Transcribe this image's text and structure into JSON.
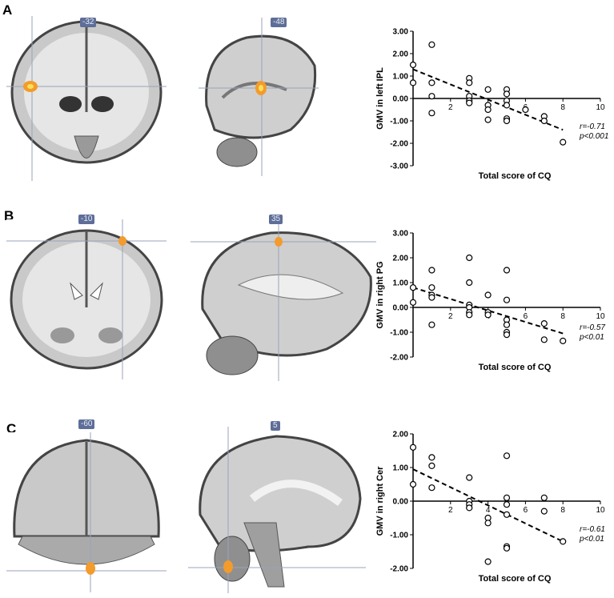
{
  "panels": [
    {
      "letter": "A",
      "coronal_coord": "-32",
      "sagittal_coord": "-48",
      "chart_data": {
        "type": "scatter",
        "ylabel": "GMV in  left IPL",
        "xlabel": "Total score of CQ",
        "xlim": [
          0,
          10
        ],
        "ylim": [
          -3,
          3
        ],
        "xticks": [
          "2",
          "4",
          "6",
          "8",
          "10"
        ],
        "yticks": [
          "3.00",
          "2.00",
          "1.00",
          "0.00",
          "-1.00",
          "-2.00",
          "-3.00"
        ],
        "points": [
          [
            0,
            1.5
          ],
          [
            0,
            0.7
          ],
          [
            1,
            2.4
          ],
          [
            1,
            0.7
          ],
          [
            1,
            0.1
          ],
          [
            1,
            -0.65
          ],
          [
            3,
            0.9
          ],
          [
            3,
            0.7
          ],
          [
            3,
            0.1
          ],
          [
            3,
            -0.1
          ],
          [
            3,
            -0.2
          ],
          [
            4,
            0.4
          ],
          [
            4,
            -0.3
          ],
          [
            4,
            -0.5
          ],
          [
            4,
            -0.95
          ],
          [
            5,
            0.4
          ],
          [
            5,
            0.2
          ],
          [
            5,
            -0.1
          ],
          [
            5,
            -0.3
          ],
          [
            5,
            -0.9
          ],
          [
            5,
            -1.0
          ],
          [
            6,
            -0.5
          ],
          [
            7,
            -0.8
          ],
          [
            7,
            -1.0
          ],
          [
            8,
            -1.95
          ]
        ],
        "trend": [
          [
            0,
            1.3
          ],
          [
            8,
            -1.4
          ]
        ],
        "stat_r": "r=-0.71",
        "stat_p": "p<0.001"
      }
    },
    {
      "letter": "B",
      "coronal_coord": "-10",
      "sagittal_coord": "35",
      "chart_data": {
        "type": "scatter",
        "ylabel": "GMV in  right PG",
        "xlabel": "Total score of CQ",
        "xlim": [
          0,
          10
        ],
        "ylim": [
          -2,
          3
        ],
        "xticks": [
          "2",
          "4",
          "6",
          "8",
          "10"
        ],
        "yticks": [
          "3.00",
          "2.00",
          "1.00",
          "0.00",
          "-1.00",
          "-2.00"
        ],
        "points": [
          [
            0,
            0.8
          ],
          [
            0,
            0.2
          ],
          [
            1,
            1.5
          ],
          [
            1,
            0.8
          ],
          [
            1,
            0.5
          ],
          [
            1,
            0.4
          ],
          [
            1,
            -0.7
          ],
          [
            3,
            2.0
          ],
          [
            3,
            1.0
          ],
          [
            3,
            0.1
          ],
          [
            3,
            0.0
          ],
          [
            3,
            -0.2
          ],
          [
            3,
            -0.3
          ],
          [
            4,
            0.5
          ],
          [
            4,
            -0.2
          ],
          [
            4,
            -0.3
          ],
          [
            5,
            1.5
          ],
          [
            5,
            0.3
          ],
          [
            5,
            -0.5
          ],
          [
            5,
            -0.7
          ],
          [
            5,
            -1.0
          ],
          [
            5,
            -1.1
          ],
          [
            7,
            -0.65
          ],
          [
            7,
            -1.3
          ],
          [
            8,
            -1.35
          ]
        ],
        "trend": [
          [
            0,
            0.8
          ],
          [
            8,
            -1.05
          ]
        ],
        "stat_r": "r=-0.57",
        "stat_p": "p<0.01"
      }
    },
    {
      "letter": "C",
      "coronal_coord": "-60",
      "sagittal_coord": "5",
      "chart_data": {
        "type": "scatter",
        "ylabel": "GMV in right Cer",
        "xlabel": "Total score of CQ",
        "xlim": [
          0,
          10
        ],
        "ylim": [
          -2,
          2
        ],
        "xticks": [
          "2",
          "4",
          "6",
          "8",
          "10"
        ],
        "yticks": [
          "2.00",
          "1.00",
          "0.00",
          "-1.00",
          "-2.00"
        ],
        "points": [
          [
            0,
            1.6
          ],
          [
            0,
            0.5
          ],
          [
            1,
            1.3
          ],
          [
            1,
            1.05
          ],
          [
            1,
            0.4
          ],
          [
            3,
            0.7
          ],
          [
            3,
            0.0
          ],
          [
            3,
            -0.1
          ],
          [
            3,
            -0.2
          ],
          [
            4,
            -0.5
          ],
          [
            4,
            -0.65
          ],
          [
            4,
            -1.8
          ],
          [
            5,
            1.35
          ],
          [
            5,
            0.1
          ],
          [
            5,
            -0.1
          ],
          [
            5,
            -0.4
          ],
          [
            5,
            -1.35
          ],
          [
            5,
            -1.4
          ],
          [
            7,
            0.1
          ],
          [
            7,
            -0.3
          ],
          [
            8,
            -1.2
          ]
        ],
        "trend": [
          [
            0,
            0.95
          ],
          [
            8,
            -1.2
          ]
        ],
        "stat_r": "r=-0.61",
        "stat_p": "p<0.01"
      }
    }
  ]
}
